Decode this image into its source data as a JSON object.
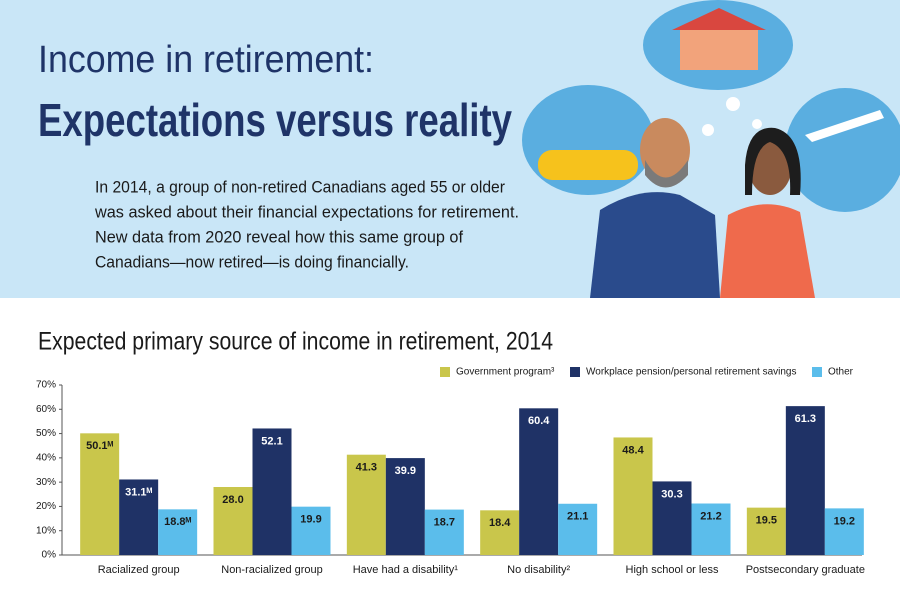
{
  "header": {
    "title_line1": "Income in retirement:",
    "title_line2": "Expectations versus reality",
    "intro": [
      "In 2014, a group of non-retired Canadians aged 55 or older",
      "was asked about their financial expectations for retirement.",
      "New data from 2020 reveal how this same group of",
      "Canadians—now retired—is doing financially."
    ]
  },
  "chart_data": {
    "type": "bar",
    "title": "Expected primary source of income in retirement, 2014",
    "categories": [
      "Racialized group",
      "Non-racialized group",
      "Have had a disability¹",
      "No disability²",
      "High school or less",
      "Postsecondary graduate"
    ],
    "series": [
      {
        "name": "Government program³",
        "color": "#c9c64b",
        "values": [
          50.1,
          28.0,
          41.3,
          18.4,
          48.4,
          19.5
        ],
        "value_labels": [
          "50.1ᴹ",
          "28.0",
          "41.3",
          "18.4",
          "48.4",
          "19.5"
        ]
      },
      {
        "name": "Workplace pension/personal retirement savings",
        "color": "#1f3266",
        "values": [
          31.1,
          52.1,
          39.9,
          60.4,
          30.3,
          61.3
        ],
        "value_labels": [
          "31.1ᴹ",
          "52.1",
          "39.9",
          "60.4",
          "30.3",
          "61.3"
        ]
      },
      {
        "name": "Other",
        "color": "#5bbdeb",
        "values": [
          18.8,
          19.9,
          18.7,
          21.1,
          21.2,
          19.2
        ],
        "value_labels": [
          "18.8ᴹ",
          "19.9",
          "18.7",
          "21.1",
          "21.2",
          "19.2"
        ]
      }
    ],
    "ylim": [
      0,
      70
    ],
    "yticks": [
      {
        "value": 0,
        "label": "0%"
      },
      {
        "value": 10,
        "label": "10%"
      },
      {
        "value": 20,
        "label": "20%"
      },
      {
        "value": 30,
        "label": "30%"
      },
      {
        "value": 40,
        "label": "40%"
      },
      {
        "value": 50,
        "label": "50%"
      },
      {
        "value": 60,
        "label": "60%"
      },
      {
        "value": 70,
        "label": "70%"
      }
    ],
    "grid": false
  }
}
